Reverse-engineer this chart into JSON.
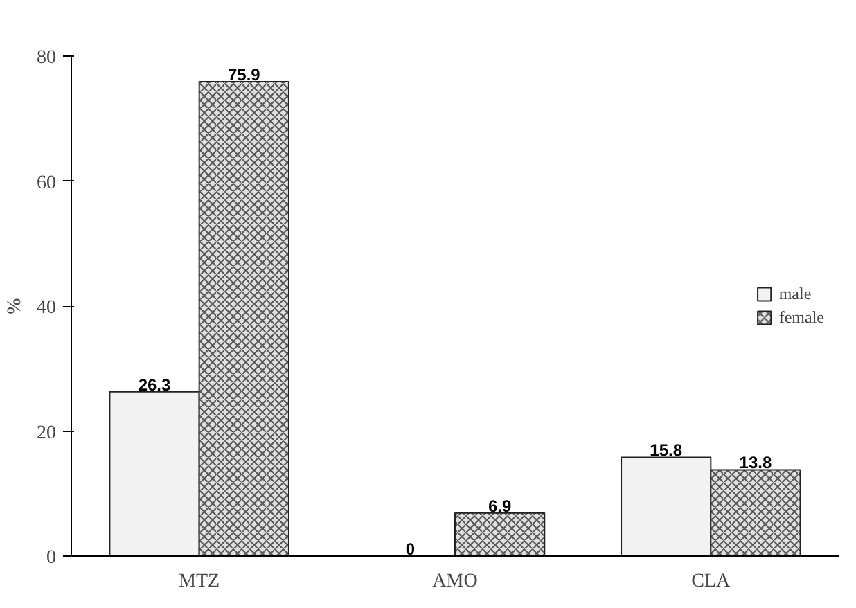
{
  "chart_data": {
    "type": "bar",
    "ylabel": "%",
    "categories": [
      "MTZ",
      "AMO",
      "CLA"
    ],
    "series": [
      {
        "name": "male",
        "color": "#f2f2f2",
        "values": [
          26.3,
          0,
          15.8
        ]
      },
      {
        "name": "female",
        "color": "#e0e0e0",
        "values": [
          75.9,
          6.9,
          13.8
        ]
      }
    ],
    "ylim": [
      0,
      80
    ],
    "yticks": [
      0,
      20,
      40,
      60,
      80
    ],
    "grid": false,
    "legend": "right",
    "data_labels": true
  }
}
